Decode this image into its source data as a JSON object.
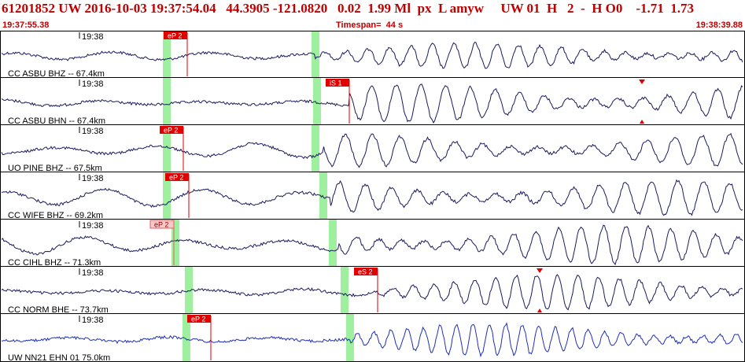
{
  "header": {
    "title_line": "61201852 UW 2016-10-03 19:37:54.04   44.3905 -121.0820   0.02  1.99 Ml  px  L amyw     UW 01  H   2  -  H O0    -1.71  1.73",
    "start_time": "19:37:55.38",
    "timespan": "Timespan=  44 s",
    "end_time": "19:38:39.88"
  },
  "colors": {
    "header_red": "#c00000",
    "trace": "#1a1a5e",
    "trace_last": "#1f2fb4",
    "window": "#9ef09e",
    "pick_red": "#e00000"
  },
  "traces": [
    {
      "label": "CC ASBU BHZ -- 67.4km",
      "minute": "19:38",
      "pick_label": "eP 2",
      "pick_style": "solid",
      "triangle": false
    },
    {
      "label": "CC ASBU BHN -- 67.4km",
      "minute": "19:38",
      "pick_label": "iS 1",
      "pick_style": "solid",
      "triangle": true
    },
    {
      "label": "UO PINE BHZ -- 67.5km",
      "minute": "19:38",
      "pick_label": "eP 2",
      "pick_style": "solid",
      "triangle": false
    },
    {
      "label": "CC WIFE BHZ -- 69.2km",
      "minute": "19:38",
      "pick_label": "eP 2",
      "pick_style": "solid",
      "triangle": false
    },
    {
      "label": "CC CIHL BHZ -- 71.3km",
      "minute": "19:38",
      "pick_label": "eP 2",
      "pick_style": "light",
      "triangle": false
    },
    {
      "label": "CC NORM BHE -- 73.7km",
      "minute": "19:38",
      "pick_label": "eS 2",
      "pick_style": "solid",
      "triangle": true
    },
    {
      "label": "UW NN21 EHN 01 75.0km",
      "minute": "19:38",
      "pick_label": "eP 2",
      "pick_style": "solid",
      "triangle": false
    }
  ]
}
